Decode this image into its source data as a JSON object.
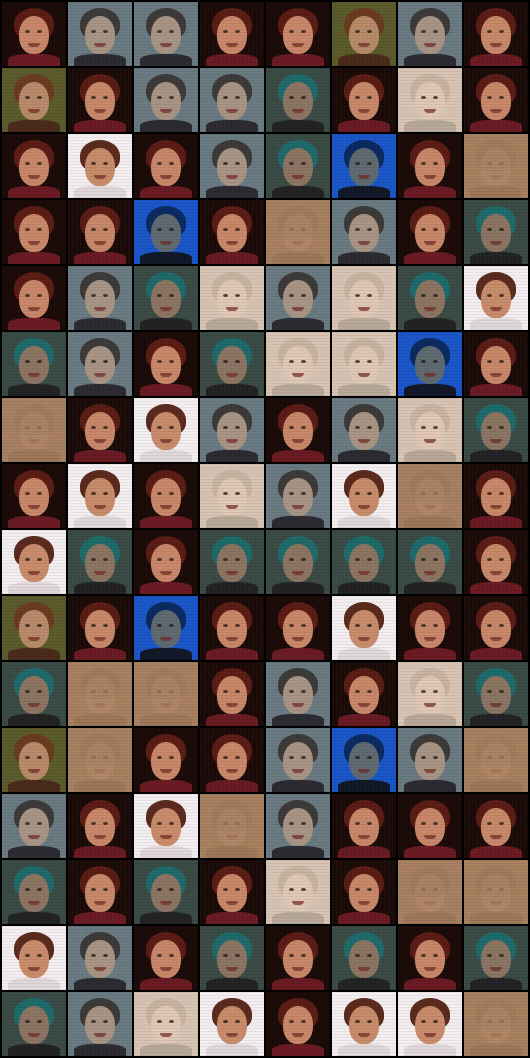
{
  "grid": {
    "columns": 8,
    "rows": 16
  },
  "palettes": {
    "girl": {
      "bg": "#1a0a08",
      "hair": "#5a1c14",
      "face": "#c9876a",
      "shirt": "#6a1a22"
    },
    "man": {
      "bg": "#6a7a82",
      "hair": "#3c3a38",
      "face": "#a89484",
      "shirt": "#2a2a30"
    },
    "teal": {
      "bg": "#3a4a44",
      "hair": "#1e6a6a",
      "face": "#8c7462",
      "shirt": "#222222"
    },
    "blue": {
      "bg": "#1a56c8",
      "hair": "#0a2a60",
      "face": "#5e6a70",
      "shirt": "#101828"
    },
    "pale": {
      "bg": "#d8c4b4",
      "hair": "#c8b4a0",
      "face": "#e0c8b4",
      "shirt": "#b8a898"
    },
    "bright": {
      "bg": "#f4eef0",
      "hair": "#5a2a1c",
      "face": "#c88c6a",
      "shirt": "#e0d8da"
    },
    "grid": {
      "bg": "#a88060",
      "hair": "#8a6a4a",
      "face": "#c29a7a",
      "shirt": "#7a5a3e"
    },
    "olive": {
      "bg": "#5a5a2a",
      "hair": "#6a3a20",
      "face": "#b88a6a",
      "shirt": "#4a2a1a"
    }
  },
  "tiles": [
    "girl",
    "man",
    "man",
    "girl",
    "girl",
    "olive",
    "man",
    "girl",
    "olive",
    "girl",
    "man",
    "man",
    "teal",
    "girl",
    "pale",
    "girl",
    "girl",
    "bright",
    "girl",
    "man",
    "teal",
    "blue",
    "girl",
    "grid",
    "girl",
    "girl",
    "blue",
    "girl",
    "grid",
    "man",
    "girl",
    "teal",
    "girl",
    "man",
    "teal",
    "pale",
    "man",
    "pale",
    "teal",
    "bright",
    "teal",
    "man",
    "girl",
    "teal",
    "pale",
    "pale",
    "blue",
    "girl",
    "grid",
    "girl",
    "bright",
    "man",
    "girl",
    "man",
    "pale",
    "teal",
    "girl",
    "bright",
    "girl",
    "pale",
    "man",
    "bright",
    "grid",
    "girl",
    "bright",
    "teal",
    "girl",
    "teal",
    "teal",
    "teal",
    "teal",
    "girl",
    "olive",
    "girl",
    "blue",
    "girl",
    "girl",
    "bright",
    "girl",
    "girl",
    "teal",
    "grid",
    "grid",
    "girl",
    "man",
    "girl",
    "pale",
    "teal",
    "olive",
    "grid",
    "girl",
    "girl",
    "man",
    "blue",
    "man",
    "grid",
    "man",
    "girl",
    "bright",
    "grid",
    "man",
    "girl",
    "girl",
    "girl",
    "teal",
    "girl",
    "teal",
    "girl",
    "pale",
    "girl",
    "grid",
    "grid",
    "bright",
    "man",
    "girl",
    "teal",
    "girl",
    "teal",
    "girl",
    "teal",
    "teal",
    "man",
    "pale",
    "bright",
    "girl",
    "bright",
    "bright",
    "grid"
  ]
}
